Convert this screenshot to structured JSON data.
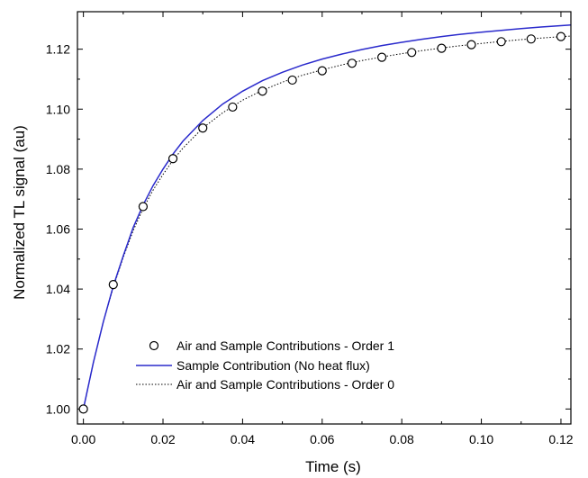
{
  "chart_data": {
    "type": "line",
    "xlabel": "Time (s)",
    "ylabel": "Normalized TL signal (au)",
    "xlim": [
      -0.0015,
      0.1225
    ],
    "ylim": [
      0.995,
      1.1325
    ],
    "x_ticks": [
      "0.00",
      "0.02",
      "0.04",
      "0.06",
      "0.08",
      "0.10",
      "0.12"
    ],
    "x_tick_values": [
      0.0,
      0.02,
      0.04,
      0.06,
      0.08,
      0.1,
      0.12
    ],
    "y_ticks": [
      "1.00",
      "1.02",
      "1.04",
      "1.06",
      "1.08",
      "1.10",
      "1.12"
    ],
    "y_tick_values": [
      1.0,
      1.02,
      1.04,
      1.06,
      1.08,
      1.1,
      1.12
    ],
    "grid": false,
    "legend_position": "bottom-left",
    "series": [
      {
        "name": "Air and Sample Contributions - Order 1",
        "style": "markers",
        "marker": "open-circle",
        "color": "#000000",
        "x": [
          0.0,
          0.0075,
          0.015,
          0.0225,
          0.03,
          0.0375,
          0.045,
          0.0525,
          0.06,
          0.0675,
          0.075,
          0.0825,
          0.09,
          0.0975,
          0.105,
          0.1125,
          0.12
        ],
        "y": [
          1.0,
          1.0415,
          1.0675,
          1.0835,
          1.0937,
          1.1007,
          1.106,
          1.1097,
          1.1128,
          1.1153,
          1.1173,
          1.1189,
          1.1203,
          1.1215,
          1.1225,
          1.1234,
          1.1242
        ]
      },
      {
        "name": "Sample Contribution (No heat flux)",
        "style": "solid",
        "color": "#2a2acc",
        "x": [
          0.0,
          0.0025,
          0.005,
          0.0075,
          0.01,
          0.0125,
          0.015,
          0.0175,
          0.02,
          0.0225,
          0.025,
          0.03,
          0.035,
          0.04,
          0.045,
          0.05,
          0.055,
          0.06,
          0.065,
          0.07,
          0.075,
          0.08,
          0.085,
          0.09,
          0.095,
          0.1,
          0.105,
          0.11,
          0.115,
          0.1225
        ],
        "y": [
          1.0,
          1.0155,
          1.029,
          1.041,
          1.051,
          1.0605,
          1.068,
          1.0745,
          1.08,
          1.085,
          1.0893,
          1.0962,
          1.1017,
          1.106,
          1.1095,
          1.1123,
          1.1147,
          1.1167,
          1.1184,
          1.1199,
          1.1212,
          1.1223,
          1.1233,
          1.1242,
          1.125,
          1.1257,
          1.1263,
          1.1269,
          1.1274,
          1.1281
        ]
      },
      {
        "name": "Air and Sample Contributions - Order 0",
        "style": "dotted",
        "color": "#000000",
        "x": [
          0.0,
          0.0025,
          0.005,
          0.0075,
          0.01,
          0.0125,
          0.015,
          0.0175,
          0.02,
          0.0225,
          0.025,
          0.03,
          0.035,
          0.04,
          0.045,
          0.05,
          0.055,
          0.06,
          0.065,
          0.07,
          0.075,
          0.08,
          0.085,
          0.09,
          0.095,
          0.1,
          0.105,
          0.11,
          0.115,
          0.1225
        ],
        "y": [
          1.0,
          1.0155,
          1.029,
          1.0405,
          1.0505,
          1.0595,
          1.0668,
          1.073,
          1.0782,
          1.083,
          1.087,
          1.0937,
          1.0988,
          1.103,
          1.1063,
          1.109,
          1.1113,
          1.1131,
          1.1148,
          1.1162,
          1.1174,
          1.1185,
          1.1195,
          1.1204,
          1.1212,
          1.1219,
          1.1226,
          1.1232,
          1.1237,
          1.1244
        ]
      }
    ]
  }
}
